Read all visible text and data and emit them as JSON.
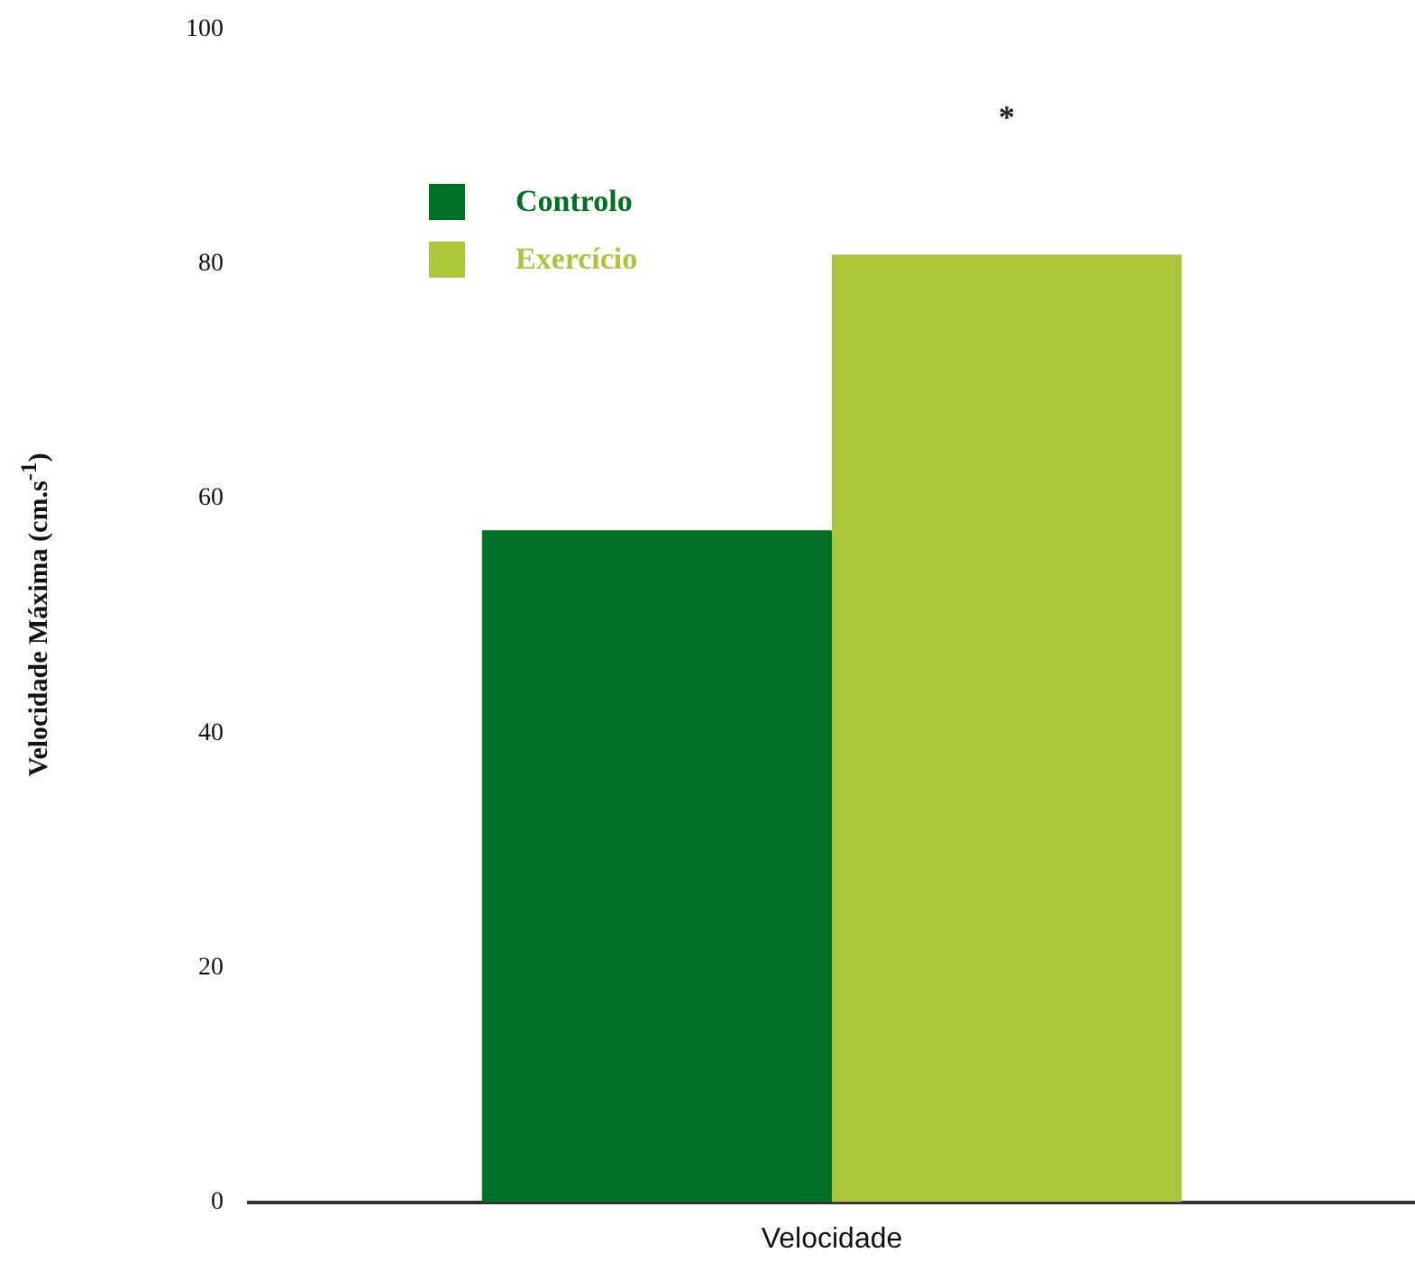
{
  "chart_data": {
    "type": "bar",
    "ylabel": "Velocidade Máxima (cm.s$^{-1}$)",
    "categories": [
      "Velocidade"
    ],
    "series": [
      {
        "name": "Controlo",
        "color": "#007124",
        "values": [
          57.3
        ]
      },
      {
        "name": "Exercício",
        "color": "#aac63c",
        "values": [
          80.8
        ]
      }
    ],
    "ylim": [
      0,
      100
    ],
    "yticks": [
      0,
      20,
      40,
      60,
      80,
      100
    ],
    "grid": false,
    "legend": "top left",
    "annotations": [
      "*"
    ]
  }
}
